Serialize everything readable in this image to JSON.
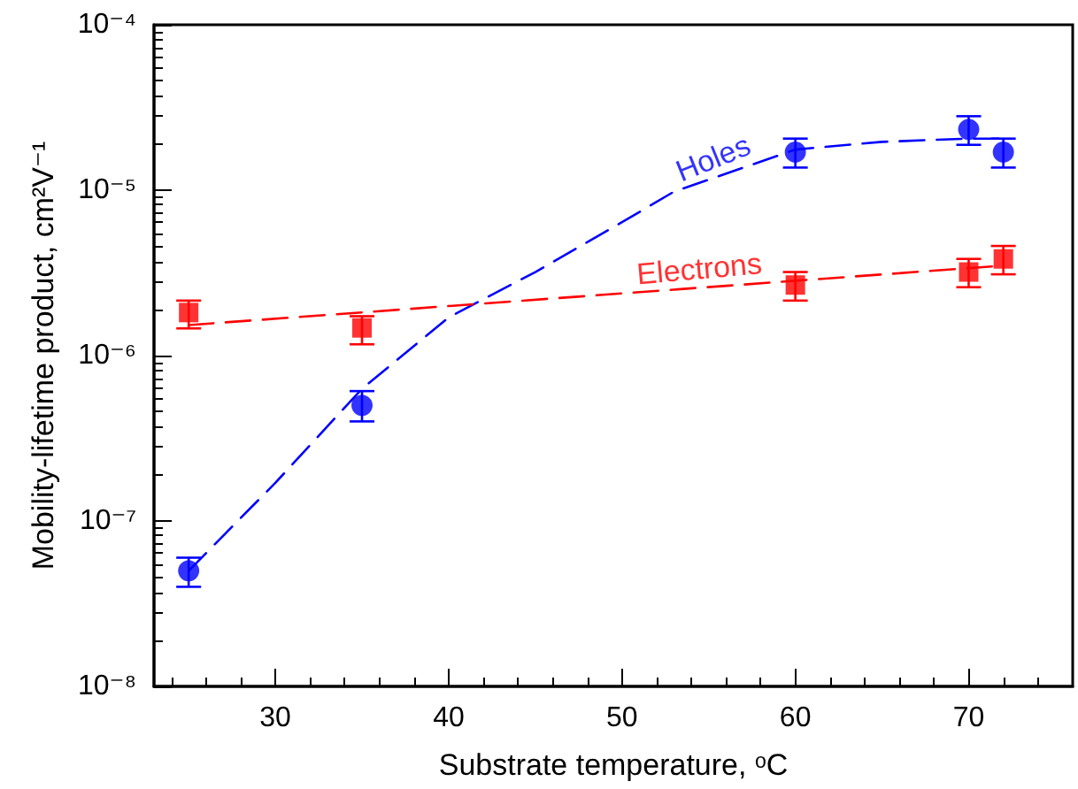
{
  "chart_data": {
    "type": "scatter",
    "xlabel": "Substrate temperature, ᵒC",
    "ylabel": "Mobility-lifetime product, cm²V⁻¹",
    "xlim": [
      23,
      76
    ],
    "xticks": [
      30,
      40,
      50,
      60,
      70
    ],
    "ylim": [
      1e-08,
      0.0001
    ],
    "yticks": [
      {
        "value": 1e-08,
        "label": "10⁻⁸"
      },
      {
        "value": 1e-07,
        "label": "10⁻⁷"
      },
      {
        "value": 1e-06,
        "label": "10⁻⁶"
      },
      {
        "value": 1e-05,
        "label": "10⁻⁵"
      },
      {
        "value": 0.0001,
        "label": "10⁻⁴"
      }
    ],
    "log": "y",
    "grid": false,
    "series": [
      {
        "type": "line",
        "name": "Holes",
        "color": "#0000ff",
        "marker": "none",
        "line_style": "dashed",
        "x": [
          25,
          30,
          35,
          40,
          45,
          50,
          53,
          60,
          65,
          70,
          72
        ],
        "values": [
          5e-08,
          1.7e-07,
          6.3e-07,
          1.7e-06,
          3.2e-06,
          6.4e-06,
          9.8e-06,
          1.76e-05,
          1.96e-05,
          2.05e-05,
          2.05e-05
        ]
      },
      {
        "type": "line",
        "name": "Electrons",
        "color": "#ff0000",
        "marker": "none",
        "line_style": "dashed",
        "x": [
          25,
          72
        ],
        "values": [
          1.53e-06,
          3.5e-06
        ]
      },
      {
        "color": "#0000ff",
        "marker": "circle",
        "x": [
          25,
          35,
          60,
          70,
          72
        ],
        "values": [
          5e-08,
          5e-07,
          1.7e-05,
          2.33e-05,
          1.7e-05
        ],
        "errors": [
          [
            4e-08,
            6e-08
          ],
          [
            4e-07,
            6.1e-07
          ],
          [
            1.37e-05,
            2.05e-05
          ],
          [
            1.88e-05,
            2.8e-05
          ],
          [
            1.37e-05,
            2.05e-05
          ]
        ]
      },
      {
        "color": "#ff0000",
        "marker": "square",
        "x": [
          25,
          35,
          60,
          70,
          72
        ],
        "values": [
          1.82e-06,
          1.47e-06,
          2.67e-06,
          3.2e-06,
          3.84e-06
        ],
        "errors": [
          [
            1.46e-06,
            2.15e-06
          ],
          [
            1.17e-06,
            1.73e-06
          ],
          [
            2.15e-06,
            3.2e-06
          ],
          [
            2.59e-06,
            3.84e-06
          ],
          [
            3.1e-06,
            4.6e-06
          ]
        ]
      }
    ]
  }
}
